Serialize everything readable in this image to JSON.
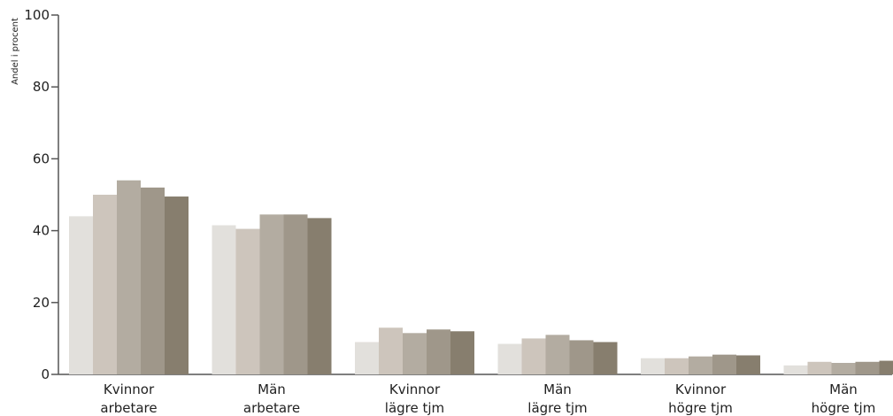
{
  "chart_data": {
    "type": "bar",
    "ylabel": "Andel i procent",
    "ylim": [
      0,
      100
    ],
    "yticks": [
      "0",
      "20",
      "40",
      "60",
      "80",
      "100"
    ],
    "categories": [
      [
        "Kvinnor",
        "arbetare"
      ],
      [
        "Män",
        "arbetare"
      ],
      [
        "Kvinnor",
        "lägre tjm"
      ],
      [
        "Män",
        "lägre tjm"
      ],
      [
        "Kvinnor",
        "högre tjm"
      ],
      [
        "Män",
        "högre tjm"
      ]
    ],
    "series_colors": [
      "#e2e0dc",
      "#cdc5bc",
      "#b3aca1",
      "#9f978a",
      "#877e6e"
    ],
    "series": [
      {
        "values": [
          44,
          41.5,
          9,
          8.5,
          4.5,
          2.5
        ]
      },
      {
        "values": [
          50,
          40.5,
          13,
          10,
          4.5,
          3.5
        ]
      },
      {
        "values": [
          54,
          44.5,
          11.5,
          11,
          5,
          3.2
        ]
      },
      {
        "values": [
          52,
          44.5,
          12.5,
          9.5,
          5.5,
          3.5
        ]
      },
      {
        "values": [
          49.5,
          43.5,
          12,
          9,
          5.3,
          3.8
        ]
      }
    ],
    "grid": false,
    "legend": "none"
  }
}
